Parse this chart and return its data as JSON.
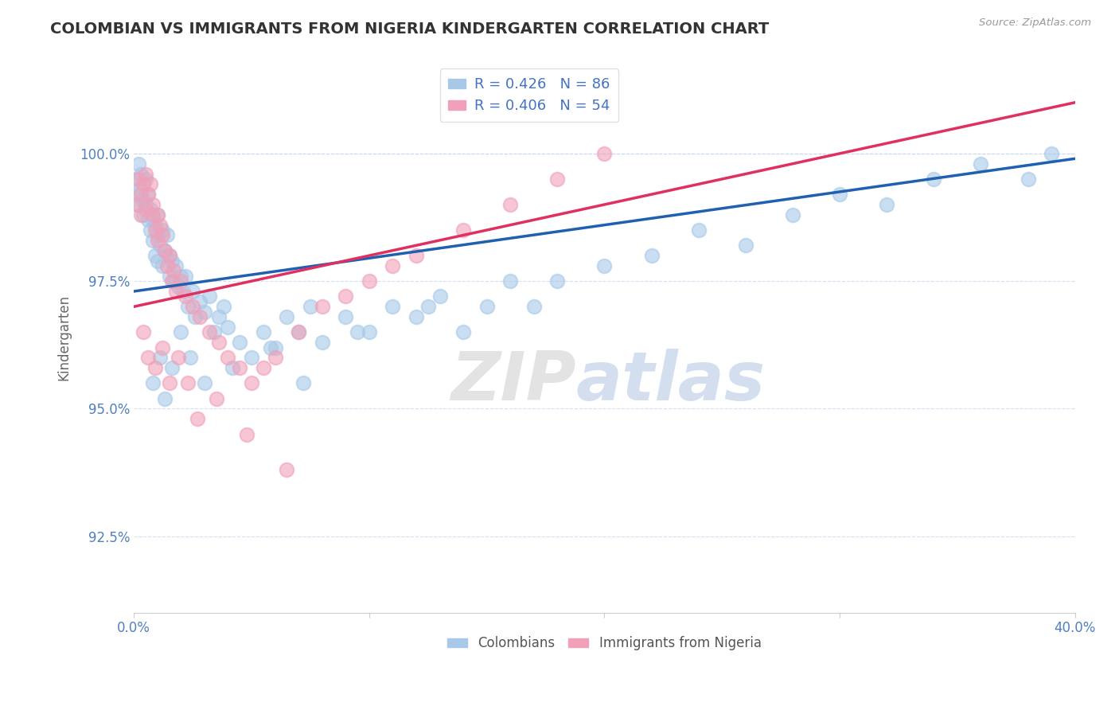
{
  "title": "COLOMBIAN VS IMMIGRANTS FROM NIGERIA KINDERGARTEN CORRELATION CHART",
  "source_text": "Source: ZipAtlas.com",
  "ylabel": "Kindergarten",
  "xlim": [
    0.0,
    40.0
  ],
  "ylim": [
    91.0,
    101.8
  ],
  "yticks": [
    92.5,
    95.0,
    97.5,
    100.0
  ],
  "ytick_labels": [
    "92.5%",
    "95.0%",
    "97.5%",
    "100.0%"
  ],
  "xtick_labels": [
    "0.0%",
    "40.0%"
  ],
  "colombian_R": 0.426,
  "colombian_N": 86,
  "nigeria_R": 0.406,
  "nigeria_N": 54,
  "colombian_color": "#a8c8e8",
  "colombia_line_color": "#2060b0",
  "nigeria_color": "#f0a0b8",
  "nigeria_line_color": "#e03060",
  "legend_label_colombian": "Colombians",
  "legend_label_nigeria": "Immigrants from Nigeria",
  "colombian_x": [
    0.1,
    0.15,
    0.2,
    0.2,
    0.25,
    0.3,
    0.35,
    0.4,
    0.5,
    0.5,
    0.6,
    0.6,
    0.7,
    0.7,
    0.8,
    0.8,
    0.9,
    0.9,
    1.0,
    1.0,
    1.0,
    1.1,
    1.2,
    1.2,
    1.3,
    1.4,
    1.5,
    1.5,
    1.6,
    1.7,
    1.8,
    1.9,
    2.0,
    2.1,
    2.2,
    2.3,
    2.5,
    2.6,
    2.8,
    3.0,
    3.2,
    3.4,
    3.6,
    3.8,
    4.0,
    4.5,
    5.0,
    5.5,
    6.0,
    6.5,
    7.0,
    7.5,
    8.0,
    9.0,
    10.0,
    11.0,
    12.0,
    13.0,
    14.0,
    15.0,
    16.0,
    17.0,
    18.0,
    20.0,
    22.0,
    24.0,
    26.0,
    28.0,
    30.0,
    32.0,
    34.0,
    36.0,
    38.0,
    39.0,
    0.8,
    1.1,
    1.3,
    1.6,
    2.0,
    2.4,
    3.0,
    4.2,
    5.8,
    7.2,
    9.5,
    12.5
  ],
  "colombian_y": [
    99.5,
    99.2,
    99.8,
    99.0,
    99.3,
    99.6,
    99.1,
    98.8,
    99.5,
    99.0,
    99.2,
    98.7,
    98.9,
    98.5,
    98.7,
    98.3,
    98.6,
    98.0,
    98.8,
    98.4,
    97.9,
    98.2,
    98.5,
    97.8,
    98.1,
    98.4,
    98.0,
    97.6,
    97.9,
    97.5,
    97.8,
    97.4,
    97.6,
    97.3,
    97.6,
    97.0,
    97.3,
    96.8,
    97.1,
    96.9,
    97.2,
    96.5,
    96.8,
    97.0,
    96.6,
    96.3,
    96.0,
    96.5,
    96.2,
    96.8,
    96.5,
    97.0,
    96.3,
    96.8,
    96.5,
    97.0,
    96.8,
    97.2,
    96.5,
    97.0,
    97.5,
    97.0,
    97.5,
    97.8,
    98.0,
    98.5,
    98.2,
    98.8,
    99.2,
    99.0,
    99.5,
    99.8,
    99.5,
    100.0,
    95.5,
    96.0,
    95.2,
    95.8,
    96.5,
    96.0,
    95.5,
    95.8,
    96.2,
    95.5,
    96.5,
    97.0
  ],
  "nigeria_x": [
    0.1,
    0.2,
    0.3,
    0.3,
    0.4,
    0.5,
    0.5,
    0.6,
    0.7,
    0.8,
    0.8,
    0.9,
    1.0,
    1.0,
    1.1,
    1.2,
    1.3,
    1.4,
    1.5,
    1.6,
    1.7,
    1.8,
    2.0,
    2.2,
    2.5,
    2.8,
    3.2,
    3.6,
    4.0,
    4.5,
    5.0,
    5.5,
    6.0,
    7.0,
    8.0,
    9.0,
    10.0,
    11.0,
    12.0,
    14.0,
    16.0,
    18.0,
    20.0,
    0.4,
    0.6,
    0.9,
    1.2,
    1.5,
    1.9,
    2.3,
    2.7,
    3.5,
    4.8,
    6.5
  ],
  "nigeria_y": [
    99.0,
    99.5,
    99.2,
    98.8,
    99.4,
    99.6,
    98.9,
    99.2,
    99.4,
    98.8,
    99.0,
    98.5,
    98.8,
    98.3,
    98.6,
    98.4,
    98.1,
    97.8,
    98.0,
    97.5,
    97.7,
    97.3,
    97.5,
    97.2,
    97.0,
    96.8,
    96.5,
    96.3,
    96.0,
    95.8,
    95.5,
    95.8,
    96.0,
    96.5,
    97.0,
    97.2,
    97.5,
    97.8,
    98.0,
    98.5,
    99.0,
    99.5,
    100.0,
    96.5,
    96.0,
    95.8,
    96.2,
    95.5,
    96.0,
    95.5,
    94.8,
    95.2,
    94.5,
    93.8
  ],
  "colombia_trendline_x": [
    0,
    40
  ],
  "colombia_trendline_y": [
    97.3,
    99.9
  ],
  "nigeria_trendline_x": [
    0,
    40
  ],
  "nigeria_trendline_y": [
    97.0,
    101.0
  ]
}
